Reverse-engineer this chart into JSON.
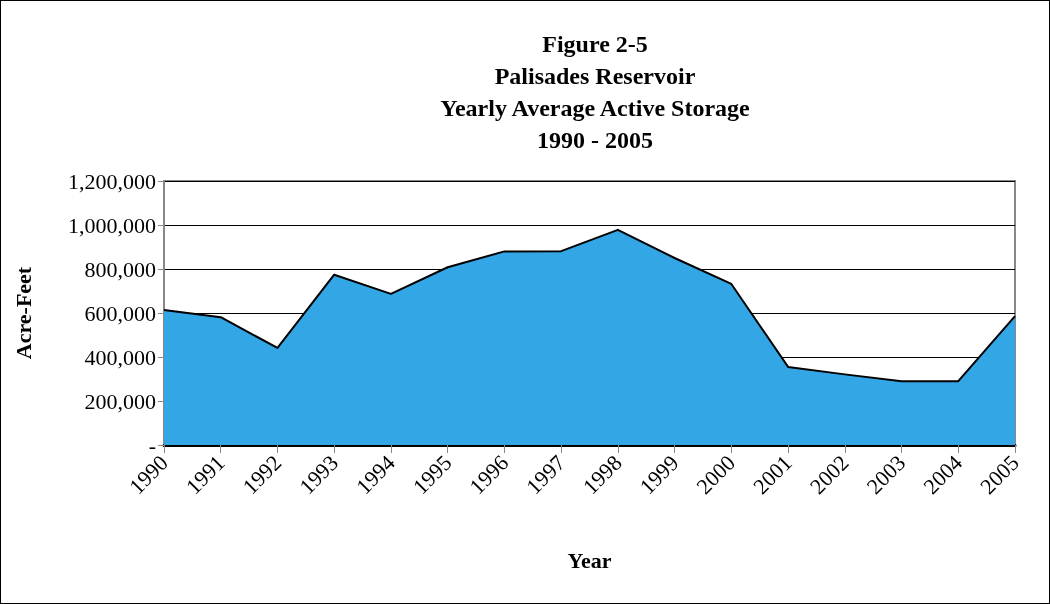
{
  "chart_data": {
    "type": "area",
    "title": "Figure 2-5\nPalisades Reservoir\nYearly Average Active Storage\n1990 - 2005",
    "xlabel": "Year",
    "ylabel": "Acre-Feet",
    "categories": [
      "1990",
      "1991",
      "1992",
      "1993",
      "1994",
      "1995",
      "1996",
      "1997",
      "1998",
      "1999",
      "2000",
      "2001",
      "2002",
      "2003",
      "2004",
      "2005"
    ],
    "series": [
      {
        "color": "#33a6e6",
        "values": [
          614000,
          581000,
          441000,
          774000,
          687000,
          808000,
          880000,
          881000,
          978000,
          850000,
          732000,
          355000,
          321000,
          290000,
          290000,
          586000
        ]
      }
    ],
    "ylim": [
      0,
      1200000
    ],
    "yticks": [
      {
        "value": 0,
        "label": "-"
      },
      {
        "value": 200000,
        "label": "200,000"
      },
      {
        "value": 400000,
        "label": "400,000"
      },
      {
        "value": 600000,
        "label": "600,000"
      },
      {
        "value": 800000,
        "label": "800,000"
      },
      {
        "value": 1000000,
        "label": "1,000,000"
      },
      {
        "value": 1200000,
        "label": "1,200,000"
      }
    ],
    "grid": "y",
    "marker": "none",
    "line_style": "solid"
  }
}
